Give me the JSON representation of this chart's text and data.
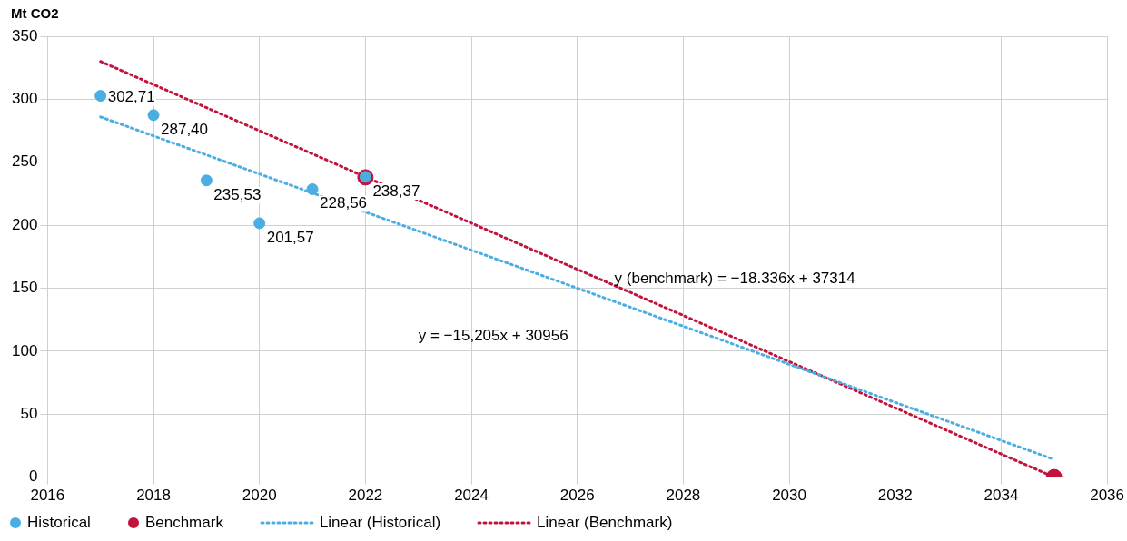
{
  "chart_data": {
    "type": "scatter",
    "ylabel": "Mt CO2",
    "xlim": [
      2016,
      2036
    ],
    "xticks": [
      2016,
      2018,
      2020,
      2022,
      2024,
      2026,
      2028,
      2030,
      2032,
      2034,
      2036
    ],
    "ylim": [
      0,
      350
    ],
    "yticks": [
      0,
      50,
      100,
      150,
      200,
      250,
      300,
      350
    ],
    "grid": true,
    "legend": "bottom",
    "series": [
      {
        "name": "Historical",
        "marker": "circle",
        "color": "#4aaee3",
        "x": [
          2017,
          2018,
          2019,
          2020,
          2021,
          2022
        ],
        "values": [
          302.71,
          287.4,
          235.53,
          201.57,
          228.56,
          238.37
        ],
        "value_labels": [
          "302,71",
          "287,40",
          "235,53",
          "201,57",
          "228,56",
          "238,37"
        ]
      },
      {
        "name": "Benchmark",
        "marker": "circle",
        "color": "#c0143c",
        "x": [
          2022,
          2035
        ],
        "values": [
          238,
          0
        ]
      },
      {
        "name": "Linear (Historical)",
        "type": "line",
        "marker": "none",
        "line_style": "dotted",
        "color": "#4aaee3",
        "x": [
          2017,
          2035
        ],
        "values": [
          286,
          14
        ]
      },
      {
        "name": "Linear (Benchmark)",
        "type": "line",
        "marker": "none",
        "line_style": "dotted",
        "color": "#c0143c",
        "x": [
          2017,
          2035
        ],
        "values": [
          330,
          0
        ]
      }
    ],
    "annotations": [
      "y (benchmark) = −18.336x + 37314",
      "y = −15,205x + 30956"
    ]
  }
}
